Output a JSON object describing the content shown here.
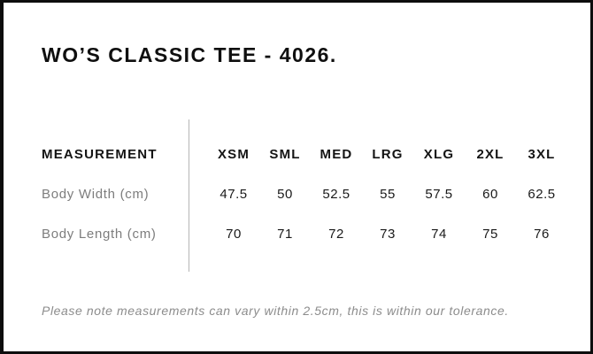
{
  "title": "WO’S CLASSIC TEE - 4026.",
  "note": "Please note measurements can vary within 2.5cm, this is within our tolerance.",
  "table": {
    "header": [
      "MEASUREMENT",
      "XSM",
      "SML",
      "MED",
      "LRG",
      "XLG",
      "2XL",
      "3XL"
    ],
    "rows": [
      {
        "label": "Body Width (cm)",
        "values": [
          "47.5",
          "50",
          "52.5",
          "55",
          "57.5",
          "60",
          "62.5"
        ]
      },
      {
        "label": "Body Length (cm)",
        "values": [
          "70",
          "71",
          "72",
          "73",
          "74",
          "75",
          "76"
        ]
      }
    ]
  },
  "chart_data": {
    "type": "table",
    "title": "WO’S CLASSIC TEE - 4026.",
    "columns": [
      "MEASUREMENT",
      "XSM",
      "SML",
      "MED",
      "LRG",
      "XLG",
      "2XL",
      "3XL"
    ],
    "rows": [
      {
        "label": "Body Width (cm)",
        "values": [
          47.5,
          50,
          52.5,
          55,
          57.5,
          60,
          62.5
        ]
      },
      {
        "label": "Body Length (cm)",
        "values": [
          70,
          71,
          72,
          73,
          74,
          75,
          76
        ]
      }
    ],
    "footnote": "Please note measurements can vary within 2.5cm, this is within our tolerance.",
    "layout": {
      "divider_between_label_and_values": true,
      "gridlines": false
    }
  },
  "colors": {
    "background": "#ffffff",
    "frame_border": "#0d0d0d",
    "title_text": "#0f0f0f",
    "header_text": "#141414",
    "value_text": "#1a1a1a",
    "label_text": "#7d7d7d",
    "note_text": "#8c8c8c",
    "divider": "#b5b5b5"
  }
}
